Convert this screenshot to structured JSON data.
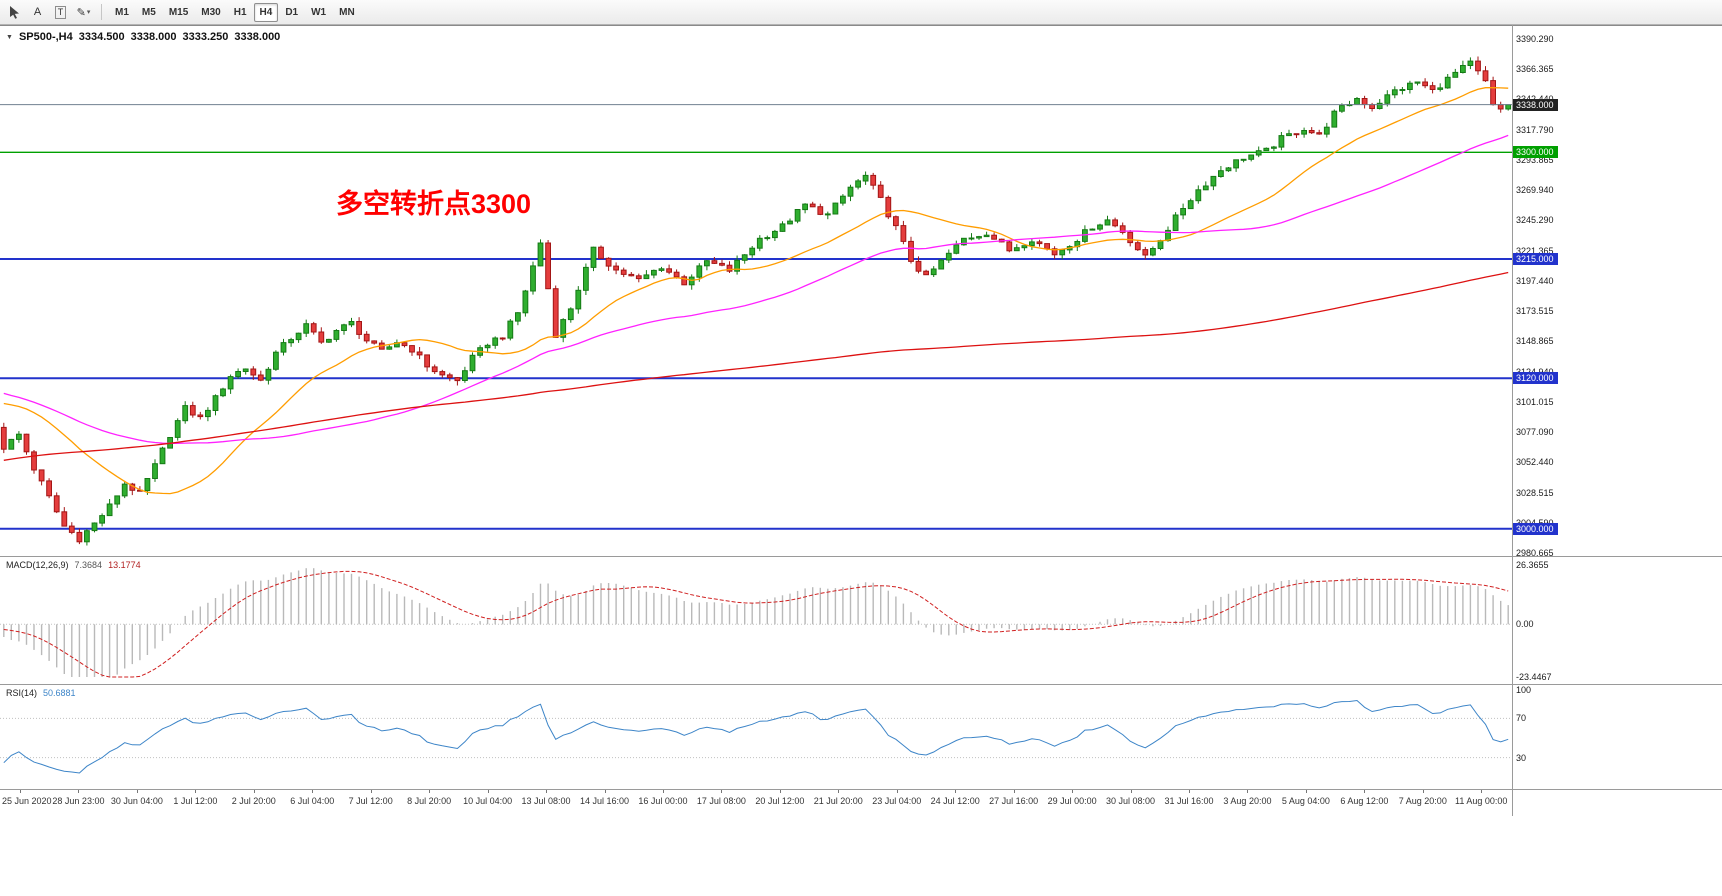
{
  "toolbar": {
    "tools": {
      "text_label_glyph": "A",
      "text_box_glyph": "T",
      "draw_glyph": "✎",
      "caret_glyph": "▾"
    },
    "timeframes": [
      "M1",
      "M5",
      "M15",
      "M30",
      "H1",
      "H4",
      "D1",
      "W1",
      "MN"
    ],
    "active_timeframe": "H4"
  },
  "chart": {
    "header": {
      "expand": "▼",
      "symbol": "SP500-,H4",
      "open": "3334.500",
      "high": "3338.000",
      "low": "3333.250",
      "close": "3338.000"
    },
    "annotation": {
      "text": "多空转折点3300",
      "color": "#ff0000"
    },
    "hlines": [
      {
        "price": 3338.0,
        "label": "3338.000",
        "line_color": "#708090",
        "badge_color": "#222222",
        "width": 1,
        "layer": "top"
      },
      {
        "price": 3300.0,
        "label": "3300.000",
        "line_color": "#00a000",
        "badge_color": "#00a000",
        "width": 1.4,
        "layer": "bottom"
      },
      {
        "price": 3215.0,
        "label": "3215.000",
        "line_color": "#2233cc",
        "badge_color": "#2233cc",
        "width": 2,
        "layer": "bottom"
      },
      {
        "price": 3120.0,
        "label": "3120.000",
        "line_color": "#2233cc",
        "badge_color": "#2233cc",
        "width": 2,
        "layer": "bottom"
      },
      {
        "price": 3000.0,
        "label": "3000.000",
        "line_color": "#2233cc",
        "badge_color": "#2233cc",
        "width": 2,
        "layer": "bottom"
      }
    ]
  },
  "indicators": {
    "macd": {
      "title": "MACD(12,26,9)",
      "value_main": "7.3684",
      "value_signal": "13.1774",
      "axis": [
        "26.3655",
        "0.00",
        "-23.4467"
      ]
    },
    "rsi": {
      "title": "RSI(14)",
      "value": "50.6881",
      "axis": [
        "100",
        "70",
        "30"
      ]
    }
  },
  "chart_data": {
    "type": "candlestick",
    "symbol": "SP500-",
    "timeframe": "H4",
    "quote": {
      "open": 3334.5,
      "high": 3338.0,
      "low": 3333.25,
      "close": 3338.0
    },
    "n_candles": 200,
    "colors": {
      "up": {
        "fill": "#2fae2f",
        "border": "#157a15"
      },
      "down": {
        "fill": "#e43d3d",
        "border": "#a31515"
      }
    },
    "y_axis": {
      "top_price": 3390.29,
      "bottom_price": 2980.665,
      "labels": [
        "3390.290",
        "3366.365",
        "3342.440",
        "3317.790",
        "3293.865",
        "3269.940",
        "3245.290",
        "3221.365",
        "3197.440",
        "3173.515",
        "3148.865",
        "3124.940",
        "3101.015",
        "3077.090",
        "3052.440",
        "3028.515",
        "3004.590",
        "2980.665"
      ]
    },
    "time_labels": [
      "25 Jun 2020",
      "28 Jun 23:00",
      "30 Jun 04:00",
      "1 Jul 12:00",
      "2 Jul 20:00",
      "6 Jul 04:00",
      "7 Jul 12:00",
      "8 Jul 20:00",
      "10 Jul 04:00",
      "13 Jul 08:00",
      "14 Jul 16:00",
      "16 Jul 00:00",
      "17 Jul 08:00",
      "20 Jul 12:00",
      "21 Jul 20:00",
      "23 Jul 04:00",
      "24 Jul 12:00",
      "27 Jul 16:00",
      "29 Jul 00:00",
      "30 Jul 08:00",
      "31 Jul 16:00",
      "3 Aug 20:00",
      "5 Aug 04:00",
      "6 Aug 12:00",
      "7 Aug 20:00",
      "11 Aug 00:00"
    ],
    "warmup_anchors": [
      [
        -200,
        2890
      ],
      [
        -170,
        2940
      ],
      [
        -140,
        3000
      ],
      [
        -110,
        3070
      ],
      [
        -85,
        3130
      ],
      [
        -60,
        3165
      ],
      [
        -45,
        3150
      ],
      [
        -35,
        3110
      ],
      [
        -28,
        3085
      ],
      [
        -20,
        3090
      ],
      [
        -14,
        3112
      ],
      [
        -8,
        3095
      ],
      [
        -4,
        3110
      ],
      [
        -1,
        3082
      ]
    ],
    "close_anchors": [
      [
        0,
        3065
      ],
      [
        2,
        3075
      ],
      [
        4,
        3048
      ],
      [
        6,
        3025
      ],
      [
        8,
        3002
      ],
      [
        10,
        2992
      ],
      [
        12,
        3004
      ],
      [
        14,
        3018
      ],
      [
        16,
        3036
      ],
      [
        18,
        3028
      ],
      [
        20,
        3050
      ],
      [
        22,
        3075
      ],
      [
        24,
        3096
      ],
      [
        26,
        3088
      ],
      [
        28,
        3104
      ],
      [
        30,
        3122
      ],
      [
        32,
        3128
      ],
      [
        34,
        3118
      ],
      [
        36,
        3140
      ],
      [
        38,
        3152
      ],
      [
        40,
        3162
      ],
      [
        42,
        3148
      ],
      [
        44,
        3158
      ],
      [
        46,
        3164
      ],
      [
        48,
        3150
      ],
      [
        50,
        3141
      ],
      [
        52,
        3149
      ],
      [
        54,
        3143
      ],
      [
        56,
        3130
      ],
      [
        58,
        3122
      ],
      [
        60,
        3118
      ],
      [
        62,
        3136
      ],
      [
        64,
        3148
      ],
      [
        66,
        3154
      ],
      [
        68,
        3172
      ],
      [
        69,
        3190
      ],
      [
        71,
        3228
      ],
      [
        73,
        3155
      ],
      [
        75,
        3176
      ],
      [
        78,
        3222
      ],
      [
        81,
        3206
      ],
      [
        84,
        3198
      ],
      [
        87,
        3209
      ],
      [
        90,
        3196
      ],
      [
        93,
        3213
      ],
      [
        96,
        3206
      ],
      [
        100,
        3231
      ],
      [
        103,
        3241
      ],
      [
        106,
        3258
      ],
      [
        109,
        3250
      ],
      [
        112,
        3272
      ],
      [
        114,
        3281
      ],
      [
        116,
        3262
      ],
      [
        118,
        3240
      ],
      [
        120,
        3214
      ],
      [
        122,
        3200
      ],
      [
        124,
        3213
      ],
      [
        127,
        3231
      ],
      [
        130,
        3236
      ],
      [
        133,
        3222
      ],
      [
        136,
        3231
      ],
      [
        139,
        3219
      ],
      [
        142,
        3231
      ],
      [
        144,
        3241
      ],
      [
        146,
        3246
      ],
      [
        148,
        3237
      ],
      [
        151,
        3216
      ],
      [
        153,
        3231
      ],
      [
        156,
        3256
      ],
      [
        158,
        3270
      ],
      [
        161,
        3286
      ],
      [
        164,
        3296
      ],
      [
        167,
        3301
      ],
      [
        169,
        3311
      ],
      [
        172,
        3319
      ],
      [
        174,
        3313
      ],
      [
        176,
        3331
      ],
      [
        179,
        3343
      ],
      [
        181,
        3336
      ],
      [
        184,
        3349
      ],
      [
        187,
        3356
      ],
      [
        189,
        3349
      ],
      [
        192,
        3363
      ],
      [
        194,
        3371
      ],
      [
        196,
        3356
      ],
      [
        197,
        3338
      ],
      [
        198,
        3334.5
      ],
      [
        199,
        3338
      ]
    ],
    "moving_averages": [
      {
        "name": "MA fast",
        "period": 20,
        "color": "#ff9d00"
      },
      {
        "name": "MA medium",
        "period": 50,
        "color": "#ff22ff"
      },
      {
        "name": "MA slow",
        "period": 200,
        "color": "#dd1111"
      }
    ],
    "macd": {
      "fast": 12,
      "slow": 26,
      "signal": 9,
      "range": {
        "min": -23.4467,
        "max": 26.3655
      },
      "hist_color": "#b9b9b9",
      "signal_color": "#d02020"
    },
    "rsi": {
      "period": 14,
      "levels": [
        70,
        30
      ],
      "line_color": "#3d85c8"
    }
  }
}
